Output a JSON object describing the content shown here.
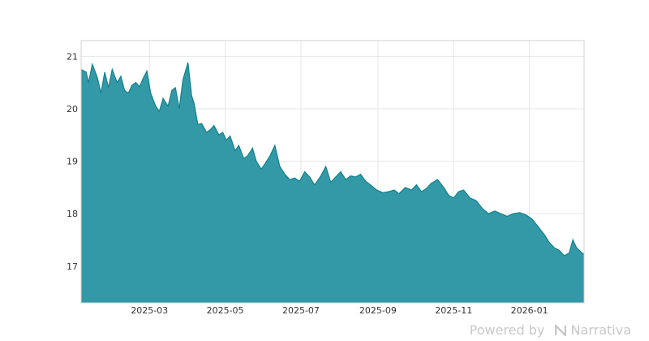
{
  "chart_data": {
    "type": "area",
    "title": "",
    "xlabel": "",
    "ylabel": "",
    "x_ticks": [
      "2025-03",
      "2025-05",
      "2025-07",
      "2025-09",
      "2025-11",
      "2026-01"
    ],
    "y_ticks": [
      17,
      18,
      19,
      20,
      21
    ],
    "xlim": [
      "2025-01-05",
      "2026-02-14"
    ],
    "ylim": [
      16.3,
      21.3
    ],
    "grid": true,
    "colors": {
      "fill": "#3399a6",
      "line": "#13818e",
      "grid": "#e6e6e6",
      "frame": "#d0d0d0"
    },
    "series": [
      {
        "x": [
          "2025-01-05",
          "2025-01-09",
          "2025-01-11",
          "2025-01-14",
          "2025-01-18",
          "2025-01-21",
          "2025-01-24",
          "2025-01-27",
          "2025-01-30",
          "2025-02-03",
          "2025-02-06",
          "2025-02-09",
          "2025-02-12",
          "2025-02-15",
          "2025-02-18",
          "2025-02-21",
          "2025-02-24",
          "2025-02-27",
          "2025-03-02",
          "2025-03-06",
          "2025-03-09",
          "2025-03-12",
          "2025-03-16",
          "2025-03-19",
          "2025-03-22",
          "2025-03-25",
          "2025-03-28",
          "2025-04-01",
          "2025-04-04",
          "2025-04-06",
          "2025-04-09",
          "2025-04-12",
          "2025-04-16",
          "2025-04-19",
          "2025-04-22",
          "2025-04-26",
          "2025-04-29",
          "2025-05-02",
          "2025-05-05",
          "2025-05-09",
          "2025-05-12",
          "2025-05-16",
          "2025-05-19",
          "2025-05-23",
          "2025-05-26",
          "2025-05-30",
          "2025-06-02",
          "2025-06-06",
          "2025-06-10",
          "2025-06-14",
          "2025-06-18",
          "2025-06-22",
          "2025-06-26",
          "2025-06-30",
          "2025-07-04",
          "2025-07-08",
          "2025-07-12",
          "2025-07-17",
          "2025-07-21",
          "2025-07-25",
          "2025-07-29",
          "2025-08-02",
          "2025-08-06",
          "2025-08-10",
          "2025-08-14",
          "2025-08-18",
          "2025-08-22",
          "2025-08-26",
          "2025-08-31",
          "2025-09-05",
          "2025-09-10",
          "2025-09-14",
          "2025-09-18",
          "2025-09-23",
          "2025-09-28",
          "2025-10-02",
          "2025-10-06",
          "2025-10-10",
          "2025-10-14",
          "2025-10-19",
          "2025-10-24",
          "2025-10-28",
          "2025-11-01",
          "2025-11-05",
          "2025-11-09",
          "2025-11-14",
          "2025-11-19",
          "2025-11-24",
          "2025-11-29",
          "2025-12-04",
          "2025-12-09",
          "2025-12-14",
          "2025-12-19",
          "2025-12-24",
          "2025-12-29",
          "2026-01-03",
          "2026-01-08",
          "2026-01-13",
          "2026-01-17",
          "2026-01-21",
          "2026-01-25",
          "2026-01-29",
          "2026-02-02",
          "2026-02-05",
          "2026-02-08",
          "2026-02-11",
          "2026-02-14"
        ],
        "values": [
          20.75,
          20.7,
          20.5,
          20.85,
          20.6,
          20.3,
          20.7,
          20.4,
          20.75,
          20.5,
          20.62,
          20.35,
          20.3,
          20.45,
          20.5,
          20.42,
          20.58,
          20.72,
          20.3,
          20.05,
          19.95,
          20.2,
          20.05,
          20.35,
          20.4,
          20.0,
          20.55,
          20.88,
          20.25,
          20.1,
          19.7,
          19.72,
          19.55,
          19.6,
          19.68,
          19.5,
          19.55,
          19.4,
          19.48,
          19.2,
          19.3,
          19.05,
          19.1,
          19.25,
          19.0,
          18.85,
          18.95,
          19.1,
          19.3,
          18.9,
          18.75,
          18.65,
          18.68,
          18.62,
          18.8,
          18.7,
          18.55,
          18.72,
          18.9,
          18.6,
          18.7,
          18.8,
          18.65,
          18.72,
          18.7,
          18.75,
          18.62,
          18.55,
          18.45,
          18.4,
          18.42,
          18.45,
          18.38,
          18.5,
          18.45,
          18.55,
          18.42,
          18.48,
          18.58,
          18.65,
          18.5,
          18.35,
          18.3,
          18.42,
          18.45,
          18.3,
          18.25,
          18.1,
          18.0,
          18.05,
          18.0,
          17.95,
          18.0,
          18.02,
          17.98,
          17.9,
          17.75,
          17.6,
          17.45,
          17.35,
          17.3,
          17.2,
          17.25,
          17.5,
          17.35,
          17.28,
          17.22
        ]
      }
    ]
  },
  "watermark": {
    "text": "Powered by",
    "brand": "Narrativa"
  }
}
